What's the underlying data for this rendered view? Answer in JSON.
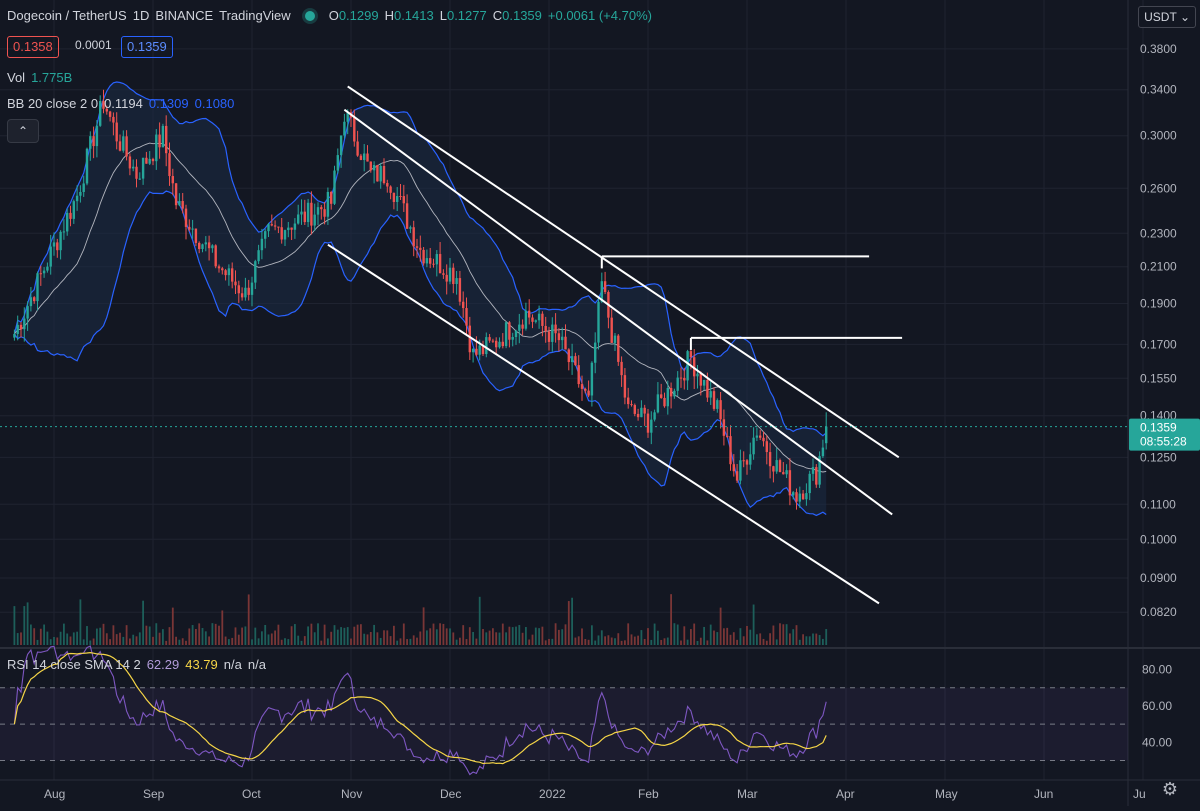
{
  "header": {
    "symbol": "Dogecoin / TetherUS",
    "interval": "1D",
    "exchange": "BINANCE",
    "source": "TradingView",
    "ohlc": {
      "open_label": "O",
      "open": "0.1299",
      "high_label": "H",
      "high": "0.1413",
      "low_label": "L",
      "low": "0.1277",
      "close_label": "C",
      "close": "0.1359",
      "change": "+0.0061 (+4.70%)"
    },
    "bid": "0.1358",
    "spread": "0.0001",
    "ask": "0.1359",
    "vol_label": "Vol",
    "vol_value": "1.775B",
    "bb_label": "BB 20 close 2 0",
    "bb_basis": "0.1194",
    "bb_upper": "0.1309",
    "bb_lower": "0.1080",
    "collapse_icon": "chevron-up-icon",
    "currency": "USDT",
    "currency_icon": "chevron-down-icon"
  },
  "rsi_legend": {
    "label": "RSI 14 close SMA 14 2",
    "value": "62.29",
    "sma": "43.79",
    "na1": "n/a",
    "na2": "n/a"
  },
  "price_tag": {
    "price": "0.1359",
    "countdown": "08:55:28"
  },
  "colors": {
    "bg": "#131722",
    "up": "#26a69a",
    "down": "#ef5350",
    "bb": "#2962ff",
    "bb_fill": "#1c2c46",
    "rsi": "#7e57c2",
    "rsi_sma": "#f5d547",
    "tag": "#26a69a"
  },
  "settings_icon": "gear-icon",
  "chart_data": [
    {
      "type": "candlestick",
      "title": "Dogecoin / TetherUS · 1D · BINANCE",
      "y_scale": "log",
      "ylim": [
        0.075,
        0.4
      ],
      "y_ticks": [
        "0.3800",
        "0.3400",
        "0.3000",
        "0.2600",
        "0.2300",
        "0.2100",
        "0.1900",
        "0.1700",
        "0.1550",
        "0.1400",
        "0.1250",
        "0.1100",
        "0.1000",
        "0.0900",
        "0.0820"
      ],
      "x_ticks": [
        "Aug",
        "Sep",
        "Oct",
        "Nov",
        "Dec",
        "2022",
        "Feb",
        "Mar",
        "Apr",
        "May",
        "Jun",
        "Ju"
      ],
      "anchors": [
        {
          "date": "2021-07-20",
          "price": 0.175
        },
        {
          "date": "2021-07-28",
          "price": 0.205
        },
        {
          "date": "2021-08-08",
          "price": 0.255
        },
        {
          "date": "2021-08-16",
          "price": 0.33
        },
        {
          "date": "2021-08-20",
          "price": 0.3
        },
        {
          "date": "2021-08-26",
          "price": 0.27
        },
        {
          "date": "2021-09-03",
          "price": 0.3
        },
        {
          "date": "2021-09-07",
          "price": 0.25
        },
        {
          "date": "2021-09-20",
          "price": 0.21
        },
        {
          "date": "2021-09-28",
          "price": 0.195
        },
        {
          "date": "2021-10-05",
          "price": 0.23
        },
        {
          "date": "2021-10-15",
          "price": 0.24
        },
        {
          "date": "2021-10-24",
          "price": 0.25
        },
        {
          "date": "2021-10-28",
          "price": 0.32
        },
        {
          "date": "2021-11-05",
          "price": 0.27
        },
        {
          "date": "2021-11-10",
          "price": 0.27
        },
        {
          "date": "2021-11-20",
          "price": 0.22
        },
        {
          "date": "2021-12-01",
          "price": 0.205
        },
        {
          "date": "2021-12-06",
          "price": 0.165
        },
        {
          "date": "2021-12-12",
          "price": 0.17
        },
        {
          "date": "2021-12-22",
          "price": 0.185
        },
        {
          "date": "2022-01-01",
          "price": 0.172
        },
        {
          "date": "2022-01-10",
          "price": 0.145
        },
        {
          "date": "2022-01-14",
          "price": 0.2
        },
        {
          "date": "2022-01-22",
          "price": 0.142
        },
        {
          "date": "2022-01-28",
          "price": 0.138
        },
        {
          "date": "2022-02-06",
          "price": 0.155
        },
        {
          "date": "2022-02-10",
          "price": 0.164
        },
        {
          "date": "2022-02-18",
          "price": 0.142
        },
        {
          "date": "2022-02-24",
          "price": 0.118
        },
        {
          "date": "2022-03-02",
          "price": 0.135
        },
        {
          "date": "2022-03-08",
          "price": 0.122
        },
        {
          "date": "2022-03-14",
          "price": 0.113
        },
        {
          "date": "2022-03-20",
          "price": 0.12
        },
        {
          "date": "2022-03-23",
          "price": 0.1359
        }
      ],
      "last": {
        "open": 0.1299,
        "high": 0.1413,
        "low": 0.1277,
        "close": 0.1359
      },
      "trendlines": [
        {
          "from": {
            "date": "2021-10-29",
            "price": 0.343
          },
          "to": {
            "date": "2022-04-14",
            "price": 0.125
          }
        },
        {
          "from": {
            "date": "2021-10-28",
            "price": 0.322
          },
          "to": {
            "date": "2022-04-12",
            "price": 0.107
          }
        },
        {
          "from": {
            "date": "2021-10-23",
            "price": 0.223
          },
          "to": {
            "date": "2022-04-08",
            "price": 0.084
          }
        }
      ],
      "levels": [
        {
          "from": "2022-01-14",
          "to": "2022-04-05",
          "price": 0.216
        },
        {
          "from": "2022-02-10",
          "to": "2022-04-15",
          "price": 0.173
        }
      ],
      "current_price": 0.1359
    },
    {
      "type": "bar",
      "title": "Vol",
      "value": "1.775B"
    },
    {
      "type": "line",
      "title": "RSI 14 close SMA 14 2",
      "ylim": [
        22,
        88
      ],
      "y_ticks": [
        80,
        60,
        40
      ],
      "bands": [
        70,
        50,
        30
      ],
      "last_rsi": 62.29,
      "last_sma": 43.79
    }
  ]
}
